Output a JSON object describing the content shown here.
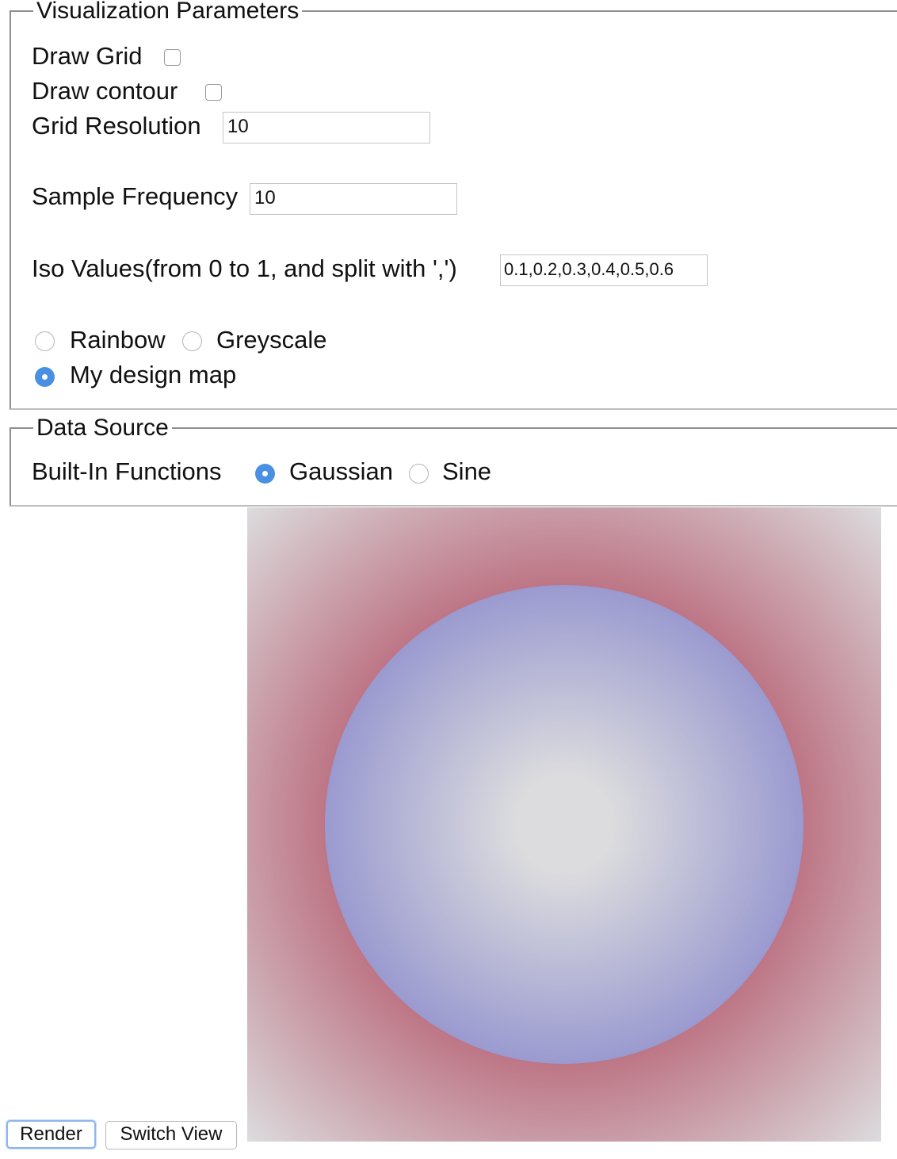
{
  "visualization_parameters": {
    "legend": "Visualization Parameters",
    "draw_grid": {
      "label": "Draw Grid",
      "checked": false
    },
    "draw_contour": {
      "label": "Draw contour",
      "checked": false
    },
    "grid_resolution": {
      "label": "Grid Resolution",
      "value": "10"
    },
    "sample_frequency": {
      "label": "Sample Frequency",
      "value": "10"
    },
    "iso_values": {
      "label": "Iso Values(from 0 to 1, and split with ',')",
      "value": "0.1,0.2,0.3,0.4,0.5,0.6"
    },
    "color_maps": [
      {
        "label": "Rainbow",
        "selected": false
      },
      {
        "label": "Greyscale",
        "selected": false
      },
      {
        "label": "My design map",
        "selected": true
      }
    ]
  },
  "data_source": {
    "legend": "Data Source",
    "label": "Built-In Functions",
    "functions": [
      {
        "label": "Gaussian",
        "selected": true
      },
      {
        "label": "Sine",
        "selected": false
      }
    ]
  },
  "buttons": {
    "render": "Render",
    "switch_view": "Switch View"
  },
  "visualization": {
    "colors": {
      "center": "#dcdcde",
      "inner_edge": "#9a9ad0",
      "outer_inner": "#bd7585",
      "outer_edge": "#dcdcde"
    }
  }
}
